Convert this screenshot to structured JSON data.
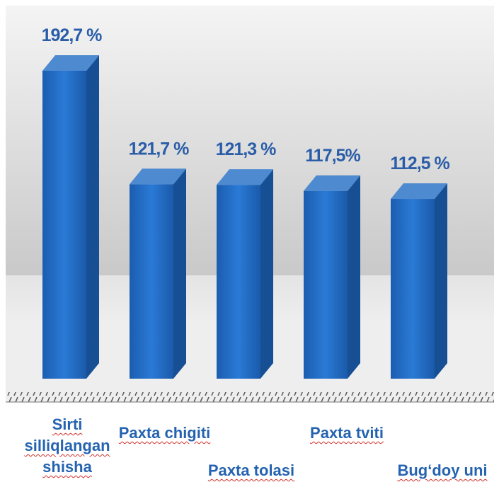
{
  "chart_data": {
    "type": "bar",
    "categories": [
      "Sirti silliqlangan shisha",
      "Paxta chigiti",
      "Paxta tolasi",
      "Paxta tviti",
      "Bug‘doy uni"
    ],
    "values": [
      192.7,
      121.7,
      121.3,
      117.5,
      112.5
    ],
    "value_labels": [
      "192,7 %",
      "121,7 %",
      "121,3 %",
      "117,5%",
      "112,5 %"
    ],
    "color": "#1f6cc4"
  }
}
